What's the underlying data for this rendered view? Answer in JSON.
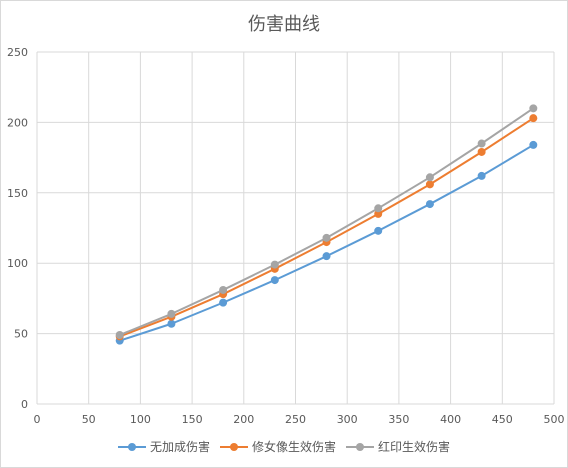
{
  "chart_data": {
    "type": "line",
    "title": "伤害曲线",
    "xlabel": "",
    "ylabel": "",
    "xlim": [
      0,
      500
    ],
    "ylim": [
      0,
      250
    ],
    "x_ticks": [
      "0",
      "50",
      "100",
      "150",
      "200",
      "250",
      "300",
      "350",
      "400",
      "450",
      "500"
    ],
    "y_ticks": [
      "0",
      "50",
      "100",
      "150",
      "200",
      "250"
    ],
    "grid": true,
    "legend_position": "bottom",
    "x": [
      80,
      130,
      180,
      230,
      280,
      330,
      380,
      430,
      480
    ],
    "series": [
      {
        "name": "无加成伤害",
        "color": "#5B9BD5",
        "values": [
          45,
          57,
          72,
          88,
          105,
          123,
          142,
          162,
          184
        ]
      },
      {
        "name": "修女像生效伤害",
        "color": "#ED7D31",
        "values": [
          48,
          62,
          78,
          96,
          115,
          135,
          156,
          179,
          203
        ]
      },
      {
        "name": "红印生效伤害",
        "color": "#A5A5A5",
        "values": [
          49,
          64,
          81,
          99,
          118,
          139,
          161,
          185,
          210
        ]
      }
    ]
  }
}
